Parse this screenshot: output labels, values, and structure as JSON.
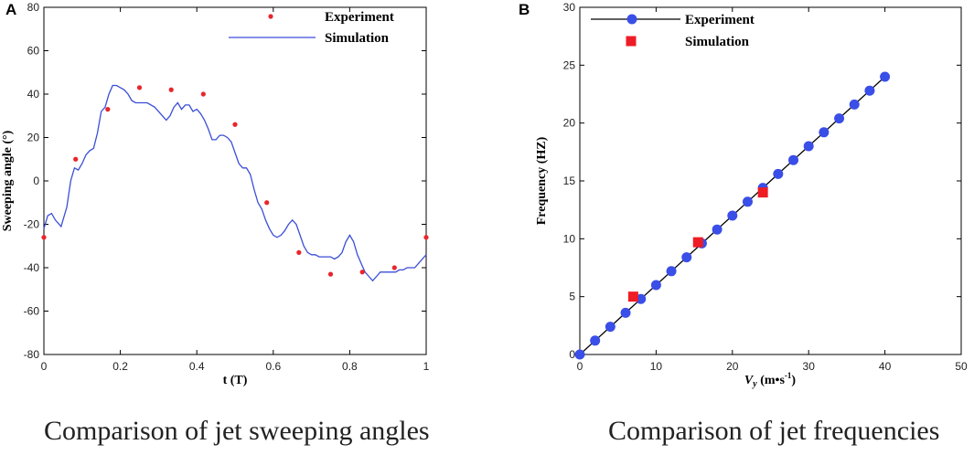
{
  "chart_data": [
    {
      "panel": "A",
      "type": "line",
      "caption": "Comparison of jet sweeping angles",
      "xlabel": "t (T)",
      "ylabel": "Sweeping angle (°)",
      "xlim": [
        0,
        1
      ],
      "ylim": [
        -80,
        80
      ],
      "xticks": [
        0,
        0.2,
        0.4,
        0.6,
        0.8,
        1
      ],
      "xtick_labels": [
        "0",
        "0.2",
        "0.4",
        "0.6",
        "0.8",
        "1"
      ],
      "yticks": [
        -80,
        -60,
        -40,
        -20,
        0,
        20,
        40,
        60,
        80
      ],
      "ytick_labels": [
        "-80",
        "-60",
        "-40",
        "-20",
        "0",
        "20",
        "40",
        "60",
        "80"
      ],
      "legend": [
        "Experiment",
        "Simulation"
      ],
      "series": [
        {
          "name": "Experiment",
          "style": "scatter",
          "color": "#e8262b",
          "x": [
            0,
            0.083,
            0.167,
            0.25,
            0.333,
            0.417,
            0.5,
            0.583,
            0.667,
            0.75,
            0.833,
            0.917,
            1.0
          ],
          "y": [
            -26,
            10,
            33,
            43,
            42,
            40,
            26,
            -10,
            -33,
            -43,
            -42,
            -40,
            -26
          ]
        },
        {
          "name": "Simulation",
          "style": "line",
          "color": "#3a4ed8",
          "x": [
            0,
            0.01,
            0.02,
            0.03,
            0.045,
            0.06,
            0.07,
            0.08,
            0.09,
            0.1,
            0.11,
            0.12,
            0.13,
            0.14,
            0.15,
            0.16,
            0.17,
            0.18,
            0.19,
            0.2,
            0.21,
            0.22,
            0.23,
            0.24,
            0.25,
            0.27,
            0.29,
            0.31,
            0.32,
            0.33,
            0.34,
            0.35,
            0.36,
            0.37,
            0.38,
            0.39,
            0.4,
            0.41,
            0.42,
            0.43,
            0.44,
            0.45,
            0.46,
            0.47,
            0.48,
            0.49,
            0.5,
            0.51,
            0.52,
            0.53,
            0.54,
            0.55,
            0.56,
            0.57,
            0.58,
            0.59,
            0.6,
            0.61,
            0.62,
            0.63,
            0.64,
            0.65,
            0.66,
            0.67,
            0.68,
            0.69,
            0.7,
            0.71,
            0.72,
            0.73,
            0.74,
            0.75,
            0.76,
            0.77,
            0.78,
            0.79,
            0.8,
            0.81,
            0.82,
            0.83,
            0.84,
            0.85,
            0.86,
            0.87,
            0.88,
            0.89,
            0.9,
            0.91,
            0.92,
            0.93,
            0.94,
            0.95,
            0.96,
            0.97,
            0.98,
            0.99,
            1.0
          ],
          "y": [
            -22,
            -16,
            -15,
            -18,
            -21,
            -12,
            0,
            6,
            5,
            8,
            12,
            14,
            15,
            22,
            32,
            34,
            40,
            44,
            44,
            43,
            42,
            40,
            37,
            36,
            36,
            36,
            34,
            30,
            28,
            30,
            34,
            36,
            33,
            35,
            35,
            32,
            33,
            31,
            28,
            24,
            19,
            19,
            21,
            21,
            20,
            18,
            13,
            8,
            6,
            6,
            3,
            -4,
            -10,
            -13,
            -18,
            -22,
            -25,
            -26,
            -25,
            -23,
            -20,
            -18,
            -20,
            -25,
            -30,
            -33,
            -34,
            -34,
            -35,
            -35,
            -35,
            -35,
            -36,
            -35,
            -33,
            -28,
            -25,
            -28,
            -34,
            -38,
            -42,
            -44,
            -46,
            -44,
            -42,
            -42,
            -42,
            -42,
            -42,
            -41,
            -41,
            -40,
            -40,
            -40,
            -38,
            -36,
            -34
          ]
        }
      ]
    },
    {
      "panel": "B",
      "type": "line",
      "caption": "Comparison of jet frequencies",
      "xlabel_main": "V",
      "xlabel_sub": "y",
      "xlabel_unit": " (m•s",
      "xlabel_exp": "-1",
      "xlabel_close": ")",
      "ylabel": "Frequency (HZ)",
      "xlim": [
        0,
        50
      ],
      "ylim": [
        0,
        30
      ],
      "xticks": [
        0,
        10,
        20,
        30,
        40,
        50
      ],
      "xtick_labels": [
        "0",
        "10",
        "20",
        "30",
        "40",
        "50"
      ],
      "yticks": [
        0,
        5,
        10,
        15,
        20,
        25,
        30
      ],
      "ytick_labels": [
        "0",
        "5",
        "10",
        "15",
        "20",
        "25",
        "30"
      ],
      "legend": [
        "Experiment",
        "Simulation"
      ],
      "series": [
        {
          "name": "Experiment",
          "style": "line+circle",
          "color": "#3a4ee8",
          "x": [
            0,
            2,
            4,
            6,
            8,
            10,
            12,
            14,
            16,
            18,
            20,
            22,
            24,
            26,
            28,
            30,
            32,
            34,
            36,
            38,
            40
          ],
          "y": [
            0,
            1.2,
            2.4,
            3.6,
            4.8,
            6.0,
            7.2,
            8.4,
            9.6,
            10.8,
            12.0,
            13.2,
            14.4,
            15.6,
            16.8,
            18.0,
            19.2,
            20.4,
            21.6,
            22.8,
            24.0
          ]
        },
        {
          "name": "Simulation",
          "style": "square",
          "color": "#ee1c25",
          "x": [
            7,
            15.5,
            24
          ],
          "y": [
            5,
            9.7,
            14
          ]
        }
      ]
    }
  ]
}
